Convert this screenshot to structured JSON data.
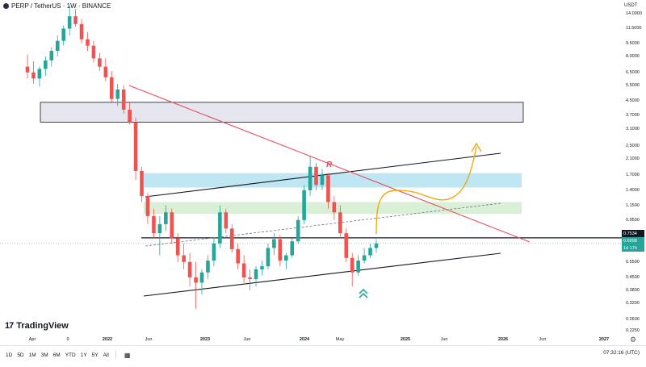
{
  "header": {
    "symbol_title": "PERP / TetherUS · 1W · BINANCE",
    "currency": "USDT"
  },
  "price_axis": {
    "ticks": [
      "14.0000",
      "11.5000",
      "9.5000",
      "8.0000",
      "6.5000",
      "5.5000",
      "4.5000",
      "3.7000",
      "3.1000",
      "2.5000",
      "2.1000",
      "1.7000",
      "1.4000",
      "1.1500",
      "0.9500",
      "0.7534",
      "0.6998",
      "0.5500",
      "0.4500",
      "0.3800",
      "0.3200",
      "0.2600",
      "0.2250"
    ],
    "last_price": "0.7534",
    "current_price": "0.6998",
    "countdown": "1d 17h"
  },
  "time_axis": {
    "labels": [
      "Apr",
      "9",
      "2022",
      "Jun",
      "2023",
      "Jun",
      "2024",
      "May",
      "2025",
      "Jun",
      "2026",
      "Jun",
      "2027"
    ]
  },
  "branding": {
    "logo_text": "TradingView",
    "logo_mark": "17"
  },
  "toolbar": {
    "timeframes": [
      "1D",
      "5D",
      "1M",
      "3M",
      "6M",
      "YTD",
      "1Y",
      "5Y",
      "All"
    ],
    "clock": "07:32:16 (UTC)"
  },
  "chart_data": {
    "type": "candlestick",
    "title": "PERP / TetherUS · 1W · BINANCE",
    "ylabel": "USDT",
    "yscale": "log",
    "ylim": [
      0.22,
      16
    ],
    "annotations": {
      "resistance_line_label": "R",
      "horizontal_level": 0.7534,
      "zones": [
        {
          "name": "upper-grey-zone",
          "range": [
            3.4,
            4.4
          ],
          "color": "#e5e6ee"
        },
        {
          "name": "blue-resistance-zone",
          "range": [
            1.45,
            1.75
          ],
          "color": "#bfe6f3"
        },
        {
          "name": "green-support-zone",
          "range": [
            1.03,
            1.2
          ],
          "color": "#d9f0d6"
        }
      ],
      "projection": "upward path then breakout",
      "support_marker": "double-chevron-up"
    },
    "colors": {
      "up": "#26a69a",
      "down": "#ef5350",
      "downtrend": "#e84c5f",
      "projection": "#f0a500",
      "channel": "#131722"
    },
    "candles": [
      [
        7.0,
        8.2,
        6.0,
        6.5
      ],
      [
        6.5,
        7.5,
        5.6,
        6.0
      ],
      [
        6.0,
        7.0,
        5.4,
        6.8
      ],
      [
        6.8,
        8.0,
        6.2,
        7.6
      ],
      [
        7.6,
        9.0,
        7.0,
        8.6
      ],
      [
        8.6,
        10.5,
        8.0,
        9.8
      ],
      [
        9.8,
        12.0,
        9.2,
        11.5
      ],
      [
        11.5,
        15.5,
        10.5,
        13.5
      ],
      [
        13.5,
        14.8,
        11.8,
        12.2
      ],
      [
        12.2,
        13.0,
        9.5,
        10.0
      ],
      [
        10.0,
        11.0,
        8.6,
        9.2
      ],
      [
        9.2,
        9.8,
        7.4,
        7.8
      ],
      [
        7.8,
        8.4,
        6.6,
        7.0
      ],
      [
        7.0,
        7.8,
        5.8,
        6.1
      ],
      [
        6.1,
        6.6,
        4.4,
        4.6
      ],
      [
        4.6,
        5.6,
        4.2,
        5.2
      ],
      [
        5.2,
        5.5,
        3.8,
        4.0
      ],
      [
        4.0,
        4.4,
        3.3,
        3.4
      ],
      [
        3.4,
        3.6,
        1.6,
        1.8
      ],
      [
        1.8,
        1.9,
        1.2,
        1.3
      ],
      [
        1.3,
        1.35,
        0.9,
        1.0
      ],
      [
        1.0,
        1.1,
        0.75,
        0.8
      ],
      [
        0.8,
        1.0,
        0.6,
        0.9
      ],
      [
        0.9,
        1.15,
        0.82,
        1.05
      ],
      [
        1.05,
        1.1,
        0.7,
        0.75
      ],
      [
        0.75,
        0.8,
        0.55,
        0.6
      ],
      [
        0.6,
        0.7,
        0.5,
        0.55
      ],
      [
        0.55,
        0.62,
        0.4,
        0.45
      ],
      [
        0.45,
        0.55,
        0.3,
        0.42
      ],
      [
        0.42,
        0.5,
        0.36,
        0.48
      ],
      [
        0.48,
        0.6,
        0.44,
        0.56
      ],
      [
        0.56,
        0.75,
        0.52,
        0.7
      ],
      [
        0.7,
        1.15,
        0.66,
        1.05
      ],
      [
        1.05,
        1.1,
        0.8,
        0.85
      ],
      [
        0.85,
        0.9,
        0.62,
        0.65
      ],
      [
        0.65,
        0.7,
        0.5,
        0.54
      ],
      [
        0.54,
        0.6,
        0.42,
        0.45
      ],
      [
        0.45,
        0.5,
        0.38,
        0.44
      ],
      [
        0.44,
        0.52,
        0.4,
        0.5
      ],
      [
        0.5,
        0.56,
        0.46,
        0.52
      ],
      [
        0.52,
        0.7,
        0.5,
        0.66
      ],
      [
        0.66,
        0.8,
        0.6,
        0.74
      ],
      [
        0.74,
        0.78,
        0.52,
        0.56
      ],
      [
        0.56,
        0.62,
        0.5,
        0.6
      ],
      [
        0.6,
        0.75,
        0.58,
        0.72
      ],
      [
        0.72,
        1.0,
        0.7,
        0.95
      ],
      [
        0.95,
        1.5,
        0.9,
        1.4
      ],
      [
        1.4,
        2.2,
        1.3,
        1.9
      ],
      [
        1.9,
        2.0,
        1.4,
        1.5
      ],
      [
        1.5,
        1.85,
        1.4,
        1.7
      ],
      [
        1.7,
        1.75,
        1.1,
        1.2
      ],
      [
        1.2,
        1.3,
        0.95,
        1.05
      ],
      [
        1.05,
        1.15,
        0.75,
        0.8
      ],
      [
        0.8,
        0.85,
        0.55,
        0.58
      ],
      [
        0.58,
        0.62,
        0.4,
        0.48
      ],
      [
        0.48,
        0.6,
        0.46,
        0.56
      ],
      [
        0.56,
        0.66,
        0.54,
        0.6
      ],
      [
        0.6,
        0.7,
        0.58,
        0.66
      ],
      [
        0.66,
        0.74,
        0.62,
        0.7
      ]
    ]
  }
}
